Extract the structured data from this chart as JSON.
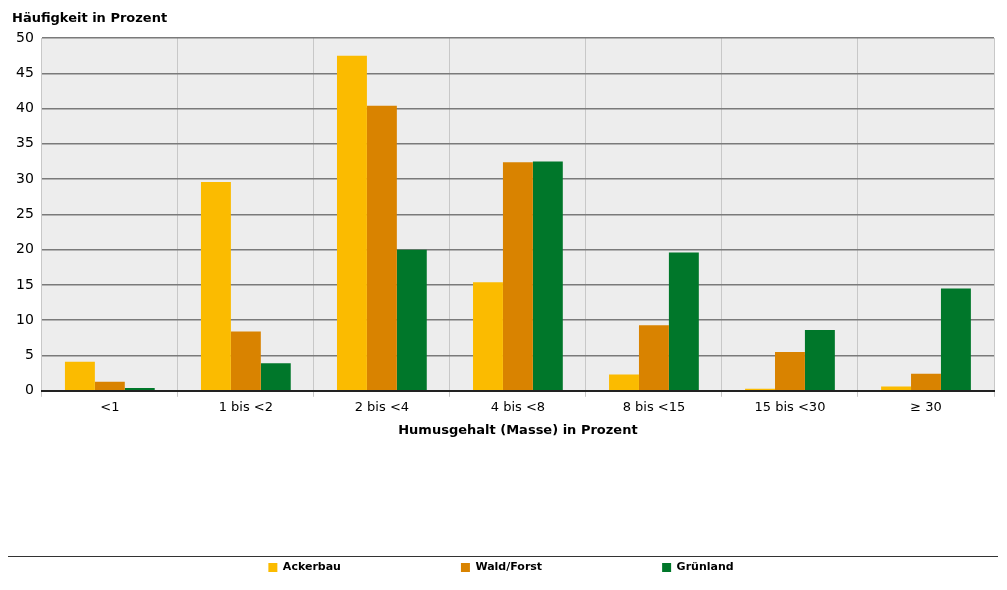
{
  "chart_data": {
    "type": "bar",
    "ylabel": "Häufigkeit in Prozent",
    "xlabel": "Humusgehalt (Masse) in Prozent",
    "categories": [
      "<1",
      "1 bis <2",
      "2 bis <4",
      "4 bis <8",
      "8 bis <15",
      "15 bis <30",
      "≥ 30"
    ],
    "series": [
      {
        "name": "Ackerbau",
        "color": "#fbbb00",
        "values": [
          4.1,
          29.6,
          47.5,
          15.4,
          2.3,
          0.3,
          0.6
        ]
      },
      {
        "name": "Wald/Forst",
        "color": "#d98300",
        "values": [
          1.3,
          8.4,
          40.4,
          32.4,
          9.3,
          5.5,
          2.4
        ]
      },
      {
        "name": "Grünland",
        "color": "#00772a",
        "values": [
          0.4,
          3.9,
          20.0,
          32.5,
          19.6,
          8.6,
          14.5
        ]
      }
    ],
    "ylim": [
      0,
      50
    ],
    "yticks": [
      0,
      5,
      10,
      15,
      20,
      25,
      30,
      35,
      40,
      45,
      50
    ],
    "grid": true,
    "legend": "bottom"
  }
}
